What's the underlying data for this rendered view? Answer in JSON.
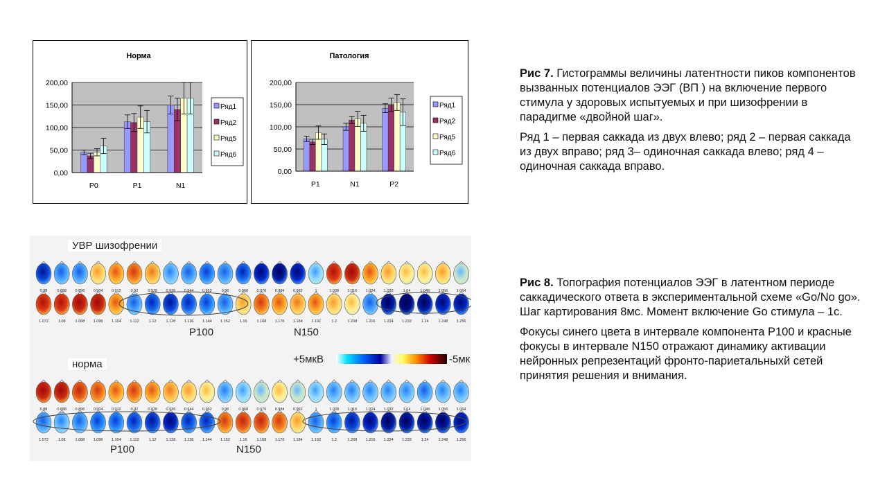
{
  "chart_data": [
    {
      "type": "bar",
      "title": "Норма",
      "categories": [
        "P0",
        "P1",
        "N1"
      ],
      "series": [
        {
          "name": "Ряд1",
          "values": [
            45,
            113,
            150
          ],
          "errors": [
            5,
            15,
            20
          ]
        },
        {
          "name": "Ряд2",
          "values": [
            37,
            111,
            140
          ],
          "errors": [
            6,
            20,
            25
          ]
        },
        {
          "name": "Ряд5",
          "values": [
            45,
            123,
            165
          ],
          "errors": [
            8,
            25,
            35
          ]
        },
        {
          "name": "Ряд6",
          "values": [
            59,
            113,
            165
          ],
          "errors": [
            17,
            25,
            35
          ]
        }
      ],
      "yticks": [
        "200,00",
        "150,00",
        "100,00",
        "50,00",
        "0,00"
      ],
      "ylim": [
        0,
        200
      ],
      "colors": [
        "#9999ff",
        "#993366",
        "#ffffcc",
        "#ccffff"
      ],
      "legend": "right",
      "grid": true
    },
    {
      "type": "bar",
      "title": "Патология",
      "categories": [
        "P1",
        "N1",
        "P2"
      ],
      "series": [
        {
          "name": "Ряд1",
          "values": [
            73,
            100,
            142
          ],
          "errors": [
            6,
            8,
            10
          ]
        },
        {
          "name": "Ряд2",
          "values": [
            66,
            115,
            150
          ],
          "errors": [
            6,
            8,
            15
          ]
        },
        {
          "name": "Ряд5",
          "values": [
            87,
            118,
            155
          ],
          "errors": [
            15,
            17,
            18
          ]
        },
        {
          "name": "Ряд6",
          "values": [
            72,
            108,
            133
          ],
          "errors": [
            12,
            18,
            30
          ]
        }
      ],
      "yticks": [
        "200,00",
        "150,00",
        "100,00",
        "50,00",
        "0,00"
      ],
      "ylim": [
        0,
        200
      ],
      "colors": [
        "#9999ff",
        "#993366",
        "#ffffcc",
        "#ccffff"
      ],
      "legend": "right",
      "grid": true
    }
  ],
  "caption7": {
    "fig_label": "Рис 7.",
    "text": "Гистограммы величины латентности пиков компонентов вызванных потенциалов ЭЭГ (ВП ) на включение первого стимула у здоровых испытуемых и при шизофрении в парадигме «двойной шаг».",
    "para2": "Ряд 1 – первая саккада из двух влево; ряд 2 – первая саккада из двух вправо; ряд 3– одиночная саккада влево; ряд 4 – одиночная саккада вправо."
  },
  "caption8": {
    "fig_label": "Рис 8.",
    "text": "Топография потенциалов ЭЭГ в латентном периоде саккадического ответа в экспериментальной схеме «Go/No go». Шаг картирования 8мс. Момент включение Go стимула – 1с.",
    "para2": "Фокусы синего цвета в интервале компонента P100 и красные фокусы в интервале N150 отражают динамику активации нейронных репрезентаций фронто-париетальныхй сетей принятия решения и внимания."
  },
  "topo": {
    "label_schizo": "УВР шизофрении",
    "label_norm": "норма",
    "p100": "P100",
    "n150": "N150",
    "scale_left": "+5мкВ",
    "scale_right": "-5мк",
    "times_row1": [
      "0.88",
      "0.888",
      "0.896",
      "0.904",
      "0.912",
      "0.92",
      "0.928",
      "0.936",
      "0.944",
      "0.952",
      "0.96",
      "0.968",
      "0.976",
      "0.984",
      "0.992",
      "1",
      "1.008",
      "1.016",
      "1.024",
      "1.032",
      "1.04",
      "1.048",
      "1.056",
      "1.064"
    ],
    "times_row2": [
      "1.072",
      "1.08",
      "1.088",
      "1.096",
      "1.104",
      "1.112",
      "1.12",
      "1.128",
      "1.136",
      "1.144",
      "1.152",
      "1.16",
      "1.168",
      "1.176",
      "1.184",
      "1.192",
      "1.2",
      "1.208",
      "1.216",
      "1.224",
      "1.232",
      "1.24",
      "1.248",
      "1.256"
    ],
    "levels_s1": [
      0.2,
      0.35,
      0.35,
      0.6,
      0.7,
      0.75,
      0.65,
      0.4,
      0.35,
      0.3,
      0.35,
      0.25,
      0.15,
      0.1,
      0.15,
      0.45,
      0.85,
      0.9,
      0.7,
      0.6,
      0.55,
      0.55,
      0.6,
      0.5
    ],
    "levels_s2": [
      0.85,
      0.85,
      0.9,
      0.9,
      0.7,
      0.35,
      0.25,
      0.2,
      0.25,
      0.3,
      0.35,
      0.6,
      0.75,
      0.7,
      0.65,
      0.7,
      0.6,
      0.55,
      0.35,
      0.1,
      0.05,
      0.1,
      0.15,
      0.15
    ],
    "levels_n1": [
      0.9,
      0.9,
      0.8,
      0.75,
      0.7,
      0.75,
      0.7,
      0.65,
      0.6,
      0.55,
      0.4,
      0.45,
      0.5,
      0.55,
      0.5,
      0.45,
      0.4,
      0.4,
      0.4,
      0.4,
      0.4,
      0.35,
      0.4,
      0.4
    ],
    "levels_n2": [
      0.35,
      0.4,
      0.35,
      0.3,
      0.3,
      0.25,
      0.2,
      0.15,
      0.25,
      0.25,
      0.75,
      0.8,
      0.8,
      0.75,
      0.6,
      0.35,
      0.3,
      0.2,
      0.15,
      0.1,
      0.1,
      0.1,
      0.1,
      0.15
    ]
  }
}
